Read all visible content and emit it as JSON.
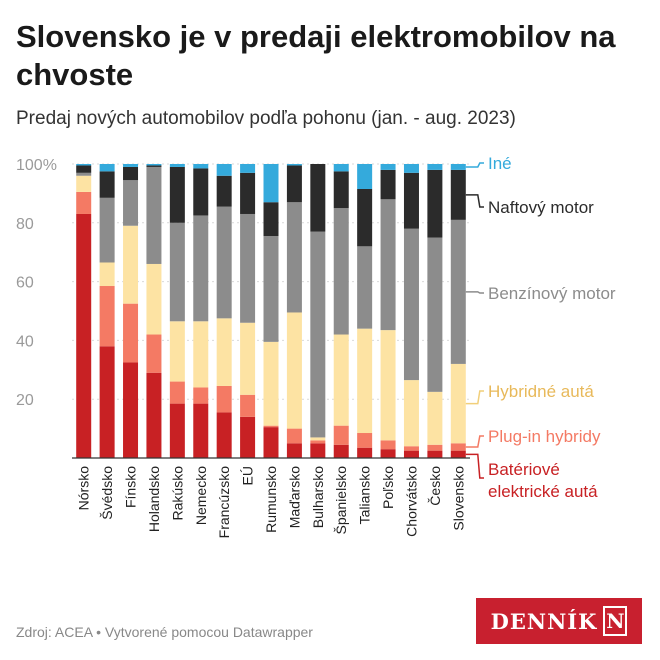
{
  "page": {
    "title": "Slovensko je v predaji elektromobilov na chvoste",
    "subtitle": "Predaj nových automobilov podľa pohonu (jan. - aug. 2023)",
    "footer": "Zdroj: ACEA • Vytvorené pomocou Datawrapper",
    "logo": {
      "text": "DENNÍK",
      "box_letter": "N",
      "color": "#c8202f"
    }
  },
  "chart_data": {
    "type": "bar",
    "stacked": true,
    "categories": [
      "Nórsko",
      "Švédsko",
      "Fínsko",
      "Holandsko",
      "Rakúsko",
      "Nemecko",
      "Francúzsko",
      "EÚ",
      "Rumunsko",
      "Maďarsko",
      "Bulharsko",
      "Španielsko",
      "Taliansko",
      "Poľsko",
      "Chorvátsko",
      "Česko",
      "Slovensko"
    ],
    "ylim": [
      0,
      100
    ],
    "yticks": [
      20,
      40,
      60,
      80,
      100
    ],
    "ytick_labels": [
      "20",
      "40",
      "60",
      "80",
      "100%"
    ],
    "grid": true,
    "legend": "right",
    "series": [
      {
        "name": "Batériové elektrické autá",
        "color": "#c82124",
        "values": [
          83,
          38,
          32.5,
          29,
          18.5,
          18.5,
          15.5,
          14,
          10.5,
          5,
          5,
          4.5,
          3.5,
          3,
          2.5,
          2.5,
          2.5
        ]
      },
      {
        "name": "Plug-in hybridy",
        "color": "#f47a64",
        "values": [
          7.5,
          20.5,
          20,
          13,
          7.5,
          5.5,
          9,
          7.5,
          0.5,
          5,
          1,
          6.5,
          5,
          3,
          1.5,
          2,
          2.5
        ]
      },
      {
        "name": "Hybridné autá",
        "color": "#fde3a3",
        "values": [
          5.5,
          8,
          26.5,
          24,
          20.5,
          22.5,
          23,
          24.5,
          28.5,
          39.5,
          1,
          31,
          35.5,
          37.5,
          22.5,
          18,
          27
        ]
      },
      {
        "name": "Benzínový motor",
        "color": "#8c8c8c",
        "values": [
          1,
          22,
          15.5,
          33,
          33.5,
          36,
          38,
          37,
          36,
          37.5,
          70,
          43,
          28,
          44.5,
          51.5,
          52.5,
          49
        ]
      },
      {
        "name": "Naftový motor",
        "color": "#2b2b2b",
        "values": [
          2.5,
          9,
          4.5,
          0.5,
          19,
          16,
          10.5,
          14,
          11.5,
          12.5,
          23,
          12.5,
          19.5,
          10,
          19,
          23,
          17
        ]
      },
      {
        "name": "Iné",
        "color": "#34aadc",
        "values": [
          0.5,
          2.5,
          1,
          0.5,
          1,
          1.5,
          4,
          3,
          13,
          0.5,
          0,
          2.5,
          8.5,
          2,
          3,
          2,
          2
        ]
      }
    ]
  }
}
